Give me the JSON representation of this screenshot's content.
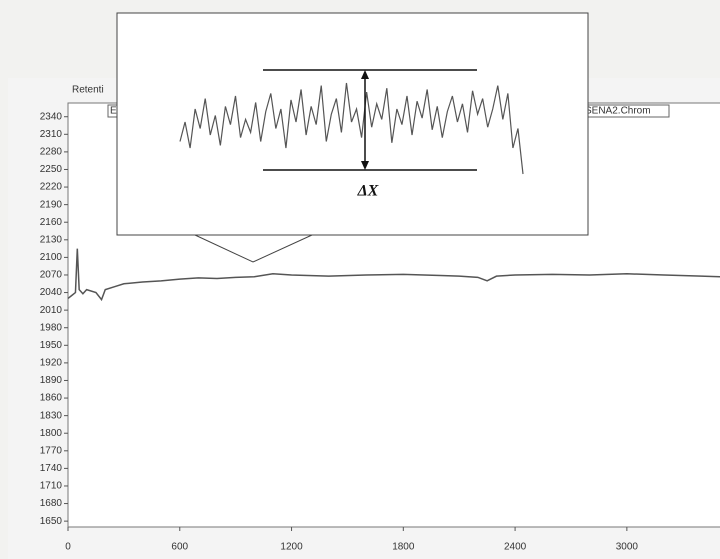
{
  "chart_data": [
    {
      "type": "line",
      "label": "Retenti",
      "tags": [
        "E",
        "SENA2.Chrom"
      ],
      "color": "#555555",
      "x": [
        0,
        20,
        40,
        50,
        60,
        80,
        100,
        150,
        180,
        200,
        250,
        300,
        400,
        500,
        600,
        700,
        800,
        900,
        1000,
        1100,
        1200,
        1400,
        1600,
        1800,
        2000,
        2100,
        2200,
        2250,
        2300,
        2400,
        2600,
        2800,
        3000,
        3200,
        3400,
        3500
      ],
      "values": [
        2030,
        2035,
        2040,
        2115,
        2045,
        2038,
        2045,
        2040,
        2028,
        2045,
        2050,
        2055,
        2058,
        2060,
        2063,
        2065,
        2064,
        2066,
        2067,
        2072,
        2070,
        2068,
        2070,
        2071,
        2069,
        2068,
        2066,
        2060,
        2068,
        2070,
        2071,
        2070,
        2072,
        2070,
        2068,
        2067
      ],
      "xlim": [
        0,
        3500
      ],
      "xticks": [
        0,
        600,
        1200,
        1800,
        2400,
        3000
      ],
      "ylim": [
        1640,
        2360
      ],
      "yticks": [
        1650,
        1680,
        1710,
        1740,
        1770,
        1800,
        1830,
        1860,
        1890,
        1920,
        1950,
        1980,
        2010,
        2040,
        2070,
        2100,
        2130,
        2160,
        2190,
        2220,
        2250,
        2280,
        2310,
        2340
      ]
    },
    {
      "type": "inset",
      "annotation": "ΔX",
      "color": "#555555",
      "ylim": [
        0,
        100
      ],
      "values": [
        45,
        60,
        40,
        70,
        55,
        78,
        50,
        65,
        42,
        72,
        58,
        80,
        48,
        62,
        52,
        75,
        45,
        68,
        82,
        55,
        70,
        40,
        77,
        60,
        85,
        50,
        72,
        58,
        88,
        45,
        66,
        78,
        52,
        90,
        60,
        70,
        48,
        83,
        56,
        74,
        62,
        86,
        44,
        70,
        58,
        80,
        50,
        76,
        63,
        85,
        54,
        72,
        48,
        68,
        80,
        60,
        74,
        52,
        84,
        66,
        78,
        56,
        70,
        88,
        62,
        82,
        40,
        55,
        20
      ]
    }
  ]
}
